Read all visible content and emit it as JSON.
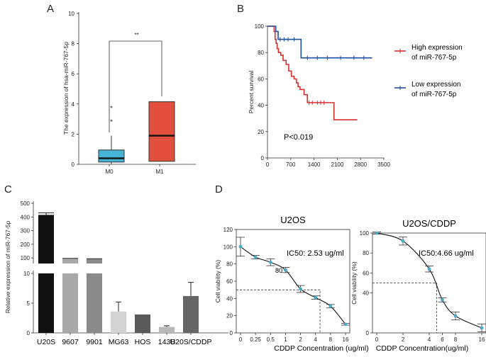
{
  "panels": {
    "a": "A",
    "b": "B",
    "c": "C",
    "d": "D"
  },
  "chart_data": [
    {
      "type": "box",
      "panel": "A",
      "ylabel": "The expression of hsa-miR-767-5p",
      "ylim": [
        0,
        10
      ],
      "yticks": [
        "0",
        "2",
        "4",
        "6",
        "8",
        "10"
      ],
      "categories": [
        "M0",
        "M1"
      ],
      "boxes": [
        {
          "name": "M0",
          "q1": 0.15,
          "median": 0.4,
          "q3": 0.95,
          "whisker_low": 0.0,
          "whisker_high": 1.9,
          "outliers": [
            2.9,
            3.8
          ],
          "color": "#45b4d4"
        },
        {
          "name": "M1",
          "q1": 0.2,
          "median": 1.9,
          "q3": 4.15,
          "whisker_low": 0.2,
          "whisker_high": 4.15,
          "outliers": [],
          "color": "#e2503d"
        }
      ],
      "significance": "**"
    },
    {
      "type": "line",
      "subtype": "kaplan-meier",
      "panel": "B",
      "ylabel": "Percent survival",
      "ylim": [
        0,
        100
      ],
      "xlim": [
        0,
        3500
      ],
      "yticks": [
        "0",
        "20",
        "40",
        "60",
        "80",
        "100"
      ],
      "xticks": [
        "0",
        "700",
        "1400",
        "2100",
        "2800",
        "3500"
      ],
      "annotation": "P<0.019",
      "series": [
        {
          "name": "High expression of miR-767-5p",
          "legend_lines": [
            "High expression",
            "of miR-767-5p"
          ],
          "color": "#d93030",
          "points": [
            [
              0,
              100
            ],
            [
              200,
              96
            ],
            [
              230,
              90
            ],
            [
              260,
              87
            ],
            [
              290,
              83
            ],
            [
              330,
              80
            ],
            [
              400,
              78
            ],
            [
              470,
              74
            ],
            [
              560,
              71
            ],
            [
              640,
              66
            ],
            [
              720,
              62
            ],
            [
              800,
              60
            ],
            [
              870,
              57
            ],
            [
              920,
              54
            ],
            [
              980,
              52
            ],
            [
              1100,
              48
            ],
            [
              1200,
              42
            ],
            [
              1400,
              42
            ],
            [
              1800,
              42
            ],
            [
              2000,
              29
            ],
            [
              2700,
              29
            ]
          ],
          "censored": [
            [
              1250,
              42
            ],
            [
              1350,
              42
            ],
            [
              1500,
              42
            ],
            [
              1600,
              42
            ],
            [
              1700,
              42
            ]
          ]
        },
        {
          "name": "Low expression of miR-767-5p",
          "legend_lines": [
            "Low expression",
            "of miR-767-5p"
          ],
          "color": "#1f4e9c",
          "points": [
            [
              0,
              100
            ],
            [
              250,
              96
            ],
            [
              320,
              90
            ],
            [
              1000,
              90
            ],
            [
              1010,
              76
            ],
            [
              3150,
              76
            ]
          ],
          "censored": [
            [
              380,
              90
            ],
            [
              500,
              90
            ],
            [
              620,
              90
            ],
            [
              800,
              90
            ],
            [
              1200,
              76
            ],
            [
              1500,
              76
            ],
            [
              1800,
              76
            ],
            [
              2200,
              76
            ],
            [
              2600,
              76
            ],
            [
              2900,
              76
            ]
          ]
        }
      ]
    },
    {
      "type": "bar",
      "panel": "C",
      "ylabel": "Relative expression of miR-767-5p",
      "ytick_labels_upper": [
        "100",
        "200",
        "300",
        "400",
        "500"
      ],
      "ytick_labels_lower": [
        "0",
        "5",
        "10"
      ],
      "categories": [
        "U20S",
        "9607",
        "9901",
        "MG63",
        "HOS",
        "143B",
        "U20S/CDDP"
      ],
      "values": [
        415,
        95,
        92,
        3.6,
        3.1,
        1.0,
        6.2
      ],
      "errors": [
        15,
        2,
        2,
        1.6,
        0,
        0.2,
        2.3
      ],
      "colors": [
        "#111111",
        "#a8a8a8",
        "#8a8a8a",
        "#d2d2d2",
        "#5a5a5a",
        "#b8b8b8",
        "#666666"
      ]
    },
    {
      "type": "scatter",
      "subtype": "dose-response",
      "panel": "D",
      "title": "U2OS",
      "ylabel": "Cell viability (%)",
      "xlabel": "CDDP Concentration (ug/ml)",
      "xtick_labels": [
        "0",
        "0.25",
        "0.5",
        "1",
        "2",
        "4",
        "8",
        "16"
      ],
      "yticks": [
        "0",
        "20",
        "40",
        "60",
        "80",
        "100",
        "120"
      ],
      "ylim": [
        0,
        120
      ],
      "values": [
        100,
        88,
        82,
        73,
        51,
        41,
        31,
        10
      ],
      "errors": [
        11,
        2,
        4,
        3,
        4,
        2,
        2,
        1
      ],
      "ic50_label": "IC50: 2.53 ug/ml",
      "ic50_position": 5.3,
      "stray_label": "80"
    },
    {
      "type": "scatter",
      "subtype": "dose-response",
      "panel": "D",
      "title": "U2OS/CDDP",
      "ylabel": "Cell viability (%)",
      "xlabel": "CDDP Concentration(ug/ml)",
      "xtick_labels": [
        "0",
        "2",
        "4",
        "6",
        "8",
        "16"
      ],
      "yticks": [
        "0",
        "40",
        "60",
        "80",
        "100"
      ],
      "ylim": [
        0,
        100
      ],
      "xpos": [
        0,
        1,
        2,
        2.5,
        3,
        4
      ],
      "values": [
        100,
        92,
        64,
        33,
        17,
        5
      ],
      "errors": [
        1,
        4,
        3,
        2,
        4,
        4
      ],
      "ic50_label": "IC50:4.66 ug/ml",
      "ic50_position": 2.28
    }
  ]
}
